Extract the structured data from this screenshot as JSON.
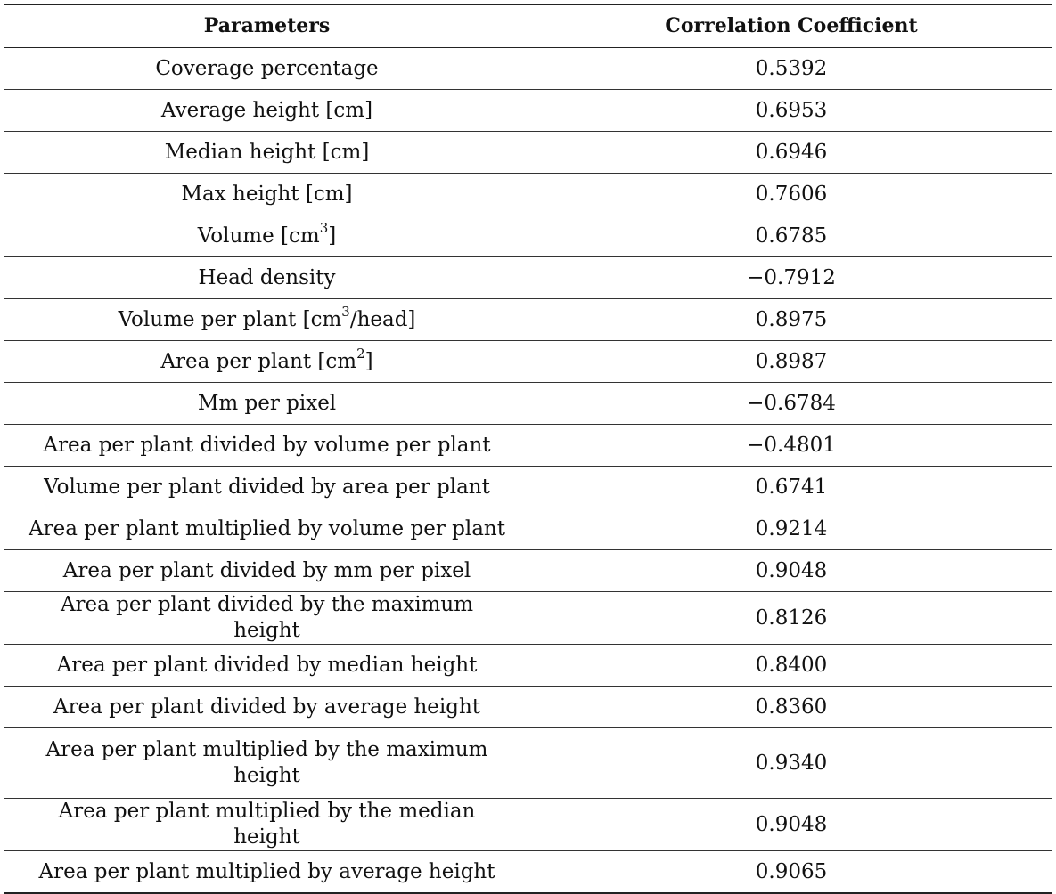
{
  "table": {
    "headers": [
      "Parameters",
      "Correlation Coefficient"
    ],
    "rows": [
      {
        "param": "Coverage percentage",
        "coef": "0.5392"
      },
      {
        "param": "Average height [cm]",
        "coef": "0.6953"
      },
      {
        "param": "Median height [cm]",
        "coef": "0.6946"
      },
      {
        "param": "Max height [cm]",
        "coef": "0.7606"
      },
      {
        "param_pre": "Volume [cm",
        "param_sup": "3",
        "param_post": "]",
        "coef": "0.6785"
      },
      {
        "param": "Head density",
        "coef": "−0.7912"
      },
      {
        "param_pre": "Volume per plant [cm",
        "param_sup": "3",
        "param_post": "/head]",
        "coef": "0.8975"
      },
      {
        "param_pre": "Area per plant [cm",
        "param_sup": "2",
        "param_post": "]",
        "coef": "0.8987"
      },
      {
        "param": "Mm per pixel",
        "coef": "−0.6784"
      },
      {
        "param": "Area per plant divided by volume per plant",
        "coef": "−0.4801"
      },
      {
        "param": "Volume per plant divided by area per plant",
        "coef": "0.6741"
      },
      {
        "param": "Area per plant multiplied by volume per plant",
        "coef": "0.9214"
      },
      {
        "param": "Area per plant divided by mm per pixel",
        "coef": "0.9048"
      },
      {
        "param": "Area per plant divided by the maximum height",
        "coef": "0.8126"
      },
      {
        "param": "Area per plant divided by median height",
        "coef": "0.8400"
      },
      {
        "param": "Area per plant divided by average height",
        "coef": "0.8360"
      },
      {
        "param": "Area per plant multiplied by the maximum height",
        "coef": "0.9340"
      },
      {
        "param": "Area per plant multiplied by the median height",
        "coef": "0.9048"
      },
      {
        "param": "Area per plant multiplied by average height",
        "coef": "0.9065"
      }
    ]
  }
}
